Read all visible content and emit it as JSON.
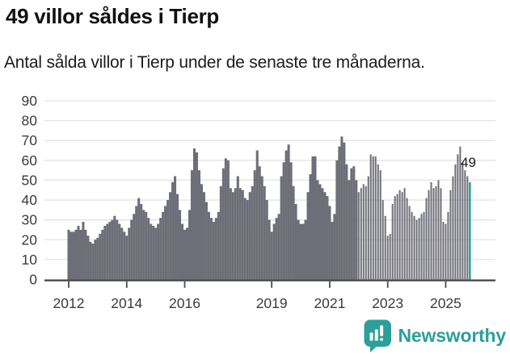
{
  "header": {
    "title": "49 villor såldes i Tierp",
    "subtitle": "Antal sålda villor i Tierp under de senaste tre månaderna."
  },
  "chart_data": {
    "type": "bar",
    "title": "49 villor såldes i Tierp",
    "subtitle": "Antal sålda villor i Tierp under de senaste tre månaderna.",
    "x_monthly_start": "2012-01",
    "x_monthly_end": "2025-11",
    "values": [
      25,
      24,
      24,
      25,
      27,
      25,
      29,
      25,
      22,
      19,
      18,
      20,
      21,
      23,
      25,
      27,
      28,
      29,
      30,
      32,
      30,
      28,
      26,
      24,
      22,
      26,
      30,
      33,
      37,
      41,
      38,
      35,
      34,
      31,
      28,
      27,
      26,
      28,
      31,
      34,
      37,
      40,
      44,
      49,
      52,
      43,
      35,
      28,
      25,
      26,
      35,
      55,
      66,
      64,
      55,
      48,
      44,
      39,
      34,
      31,
      29,
      31,
      34,
      47,
      56,
      61,
      60,
      46,
      44,
      46,
      52,
      46,
      45,
      41,
      40,
      44,
      47,
      55,
      65,
      57,
      52,
      47,
      40,
      30,
      24,
      28,
      31,
      33,
      52,
      59,
      65,
      68,
      59,
      47,
      38,
      30,
      28,
      28,
      30,
      44,
      53,
      62,
      62,
      50,
      48,
      46,
      44,
      42,
      37,
      29,
      33,
      60,
      67,
      72,
      69,
      58,
      50,
      56,
      57,
      50,
      44,
      46,
      48,
      47,
      52,
      63,
      62,
      62,
      58,
      55,
      40,
      32,
      22,
      23,
      38,
      42,
      43,
      45,
      44,
      46,
      41,
      37,
      34,
      32,
      30,
      31,
      33,
      34,
      41,
      45,
      49,
      46,
      47,
      50,
      46,
      29,
      28,
      34,
      45,
      52,
      58,
      63,
      67,
      59,
      55,
      52,
      49
    ],
    "highlight": {
      "position": "last",
      "value": 49,
      "color": "#0a9b8d"
    },
    "annotation": {
      "label": "49"
    },
    "bar_color": "#6e6e78",
    "grid": true,
    "grid_color": "#e3e3e3",
    "axis_color": "#4d4d4d",
    "tick_label_color": "#3b3b3b",
    "ylim": [
      0,
      90
    ],
    "yticks": [
      0,
      10,
      20,
      30,
      40,
      50,
      60,
      70,
      80,
      90
    ],
    "x_tick_years": [
      2012,
      2014,
      2016,
      2019,
      2021,
      2023,
      2025
    ],
    "legend": "none"
  },
  "logo": {
    "text": "Newsworthy",
    "color": "#2d9f9a",
    "icon": "newsworthy-chart-bubble-icon"
  }
}
